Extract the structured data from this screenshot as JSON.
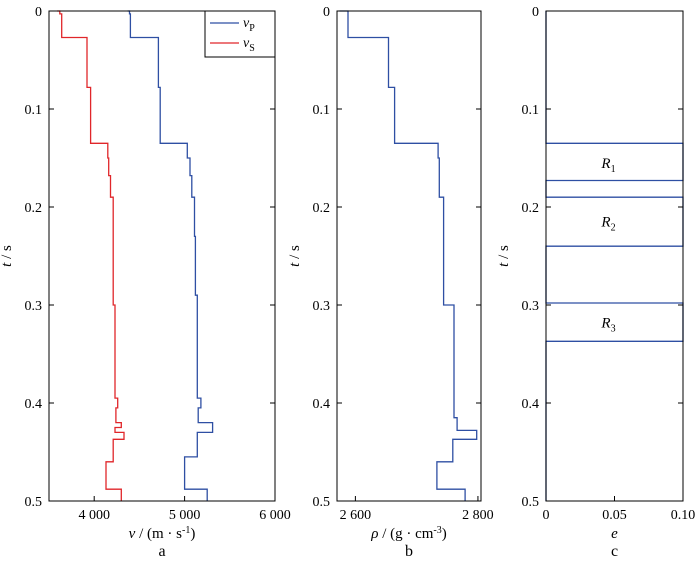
{
  "figure": {
    "colors": {
      "vp": "#2e4fa3",
      "vs": "#e0262a",
      "rho": "#2e4fa3",
      "e": "#2e4fa3",
      "axis": "#000000"
    }
  },
  "chart_data": [
    {
      "panel": "a",
      "type": "line",
      "panel_label": "a",
      "xlabel_sym": "v",
      "xlabel_unit": " / (m · s",
      "xlabel_exp": "-1",
      "xlabel_close": ")",
      "ylabel_sym": "t",
      "ylabel_unit": " / s",
      "xlim": [
        3500,
        6000
      ],
      "ylim": [
        0,
        0.5
      ],
      "xticks": [
        4000,
        5000,
        6000
      ],
      "xtick_labels": [
        "4 000",
        "5 000",
        "6 000"
      ],
      "yticks": [
        0,
        0.1,
        0.2,
        0.3,
        0.4,
        0.5
      ],
      "ytick_labels": [
        "0",
        "0.1",
        "0.2",
        "0.3",
        "0.4",
        "0.5"
      ],
      "legend": [
        {
          "sym": "v",
          "sub": "P",
          "series": "vp"
        },
        {
          "sym": "v",
          "sub": "S",
          "series": "vs"
        }
      ],
      "legend_position": "top-right",
      "series": [
        {
          "name": "vp",
          "points": [
            [
              4370,
              0
            ],
            [
              4390,
              0
            ],
            [
              4390,
              0.003
            ],
            [
              4400,
              0.003
            ],
            [
              4400,
              0.027
            ],
            [
              4710,
              0.027
            ],
            [
              4710,
              0.078
            ],
            [
              4730,
              0.078
            ],
            [
              4730,
              0.135
            ],
            [
              5030,
              0.135
            ],
            [
              5030,
              0.15
            ],
            [
              5060,
              0.15
            ],
            [
              5060,
              0.168
            ],
            [
              5080,
              0.168
            ],
            [
              5080,
              0.19
            ],
            [
              5110,
              0.19
            ],
            [
              5110,
              0.23
            ],
            [
              5120,
              0.23
            ],
            [
              5120,
              0.29
            ],
            [
              5140,
              0.29
            ],
            [
              5140,
              0.395
            ],
            [
              5180,
              0.395
            ],
            [
              5180,
              0.405
            ],
            [
              5150,
              0.405
            ],
            [
              5150,
              0.42
            ],
            [
              5310,
              0.42
            ],
            [
              5310,
              0.43
            ],
            [
              5140,
              0.43
            ],
            [
              5140,
              0.455
            ],
            [
              5000,
              0.455
            ],
            [
              5000,
              0.488
            ],
            [
              5250,
              0.488
            ],
            [
              5250,
              0.5
            ]
          ]
        },
        {
          "name": "vs",
          "points": [
            [
              3590,
              0
            ],
            [
              3620,
              0
            ],
            [
              3620,
              0.003
            ],
            [
              3640,
              0.003
            ],
            [
              3640,
              0.027
            ],
            [
              3920,
              0.027
            ],
            [
              3920,
              0.078
            ],
            [
              3960,
              0.078
            ],
            [
              3960,
              0.135
            ],
            [
              4150,
              0.135
            ],
            [
              4150,
              0.15
            ],
            [
              4160,
              0.15
            ],
            [
              4160,
              0.168
            ],
            [
              4180,
              0.168
            ],
            [
              4180,
              0.19
            ],
            [
              4210,
              0.19
            ],
            [
              4210,
              0.3
            ],
            [
              4230,
              0.3
            ],
            [
              4230,
              0.395
            ],
            [
              4260,
              0.395
            ],
            [
              4260,
              0.405
            ],
            [
              4240,
              0.405
            ],
            [
              4240,
              0.42
            ],
            [
              4300,
              0.42
            ],
            [
              4300,
              0.425
            ],
            [
              4230,
              0.425
            ],
            [
              4230,
              0.43
            ],
            [
              4330,
              0.43
            ],
            [
              4330,
              0.437
            ],
            [
              4210,
              0.437
            ],
            [
              4210,
              0.46
            ],
            [
              4130,
              0.46
            ],
            [
              4130,
              0.488
            ],
            [
              4300,
              0.488
            ],
            [
              4300,
              0.5
            ]
          ]
        }
      ]
    },
    {
      "panel": "b",
      "type": "line",
      "panel_label": "b",
      "xlabel_sym": "ρ",
      "xlabel_unit": " / (g · cm",
      "xlabel_exp": "-3",
      "xlabel_close": ")",
      "ylabel_sym": "t",
      "ylabel_unit": " / s",
      "xlim": [
        2570,
        2805
      ],
      "ylim": [
        0,
        0.5
      ],
      "xticks": [
        2600,
        2800
      ],
      "xtick_labels": [
        "2 600",
        "2 800"
      ],
      "yticks": [
        0,
        0.1,
        0.2,
        0.3,
        0.4,
        0.5
      ],
      "ytick_labels": [
        "0",
        "0.1",
        "0.2",
        "0.3",
        "0.4",
        "0.5"
      ],
      "series": [
        {
          "name": "rho",
          "points": [
            [
              2574,
              0
            ],
            [
              2588,
              0
            ],
            [
              2588,
              0.027
            ],
            [
              2654,
              0.027
            ],
            [
              2654,
              0.078
            ],
            [
              2664,
              0.078
            ],
            [
              2664,
              0.135
            ],
            [
              2735,
              0.135
            ],
            [
              2735,
              0.15
            ],
            [
              2737,
              0.15
            ],
            [
              2737,
              0.19
            ],
            [
              2744,
              0.19
            ],
            [
              2744,
              0.3
            ],
            [
              2761,
              0.3
            ],
            [
              2761,
              0.415
            ],
            [
              2766,
              0.415
            ],
            [
              2766,
              0.428
            ],
            [
              2798,
              0.428
            ],
            [
              2798,
              0.437
            ],
            [
              2759,
              0.437
            ],
            [
              2759,
              0.46
            ],
            [
              2733,
              0.46
            ],
            [
              2733,
              0.488
            ],
            [
              2779,
              0.488
            ],
            [
              2779,
              0.5
            ]
          ]
        }
      ]
    },
    {
      "panel": "c",
      "type": "line",
      "panel_label": "c",
      "xlabel_sym": "e",
      "ylabel_sym": "t",
      "ylabel_unit": " / s",
      "xlim": [
        0,
        0.1
      ],
      "ylim": [
        0,
        0.5
      ],
      "xticks": [
        0,
        0.05,
        0.1
      ],
      "xtick_labels": [
        "0",
        "0.05",
        "0.10"
      ],
      "yticks": [
        0,
        0.1,
        0.2,
        0.3,
        0.4,
        0.5
      ],
      "ytick_labels": [
        "0",
        "0.1",
        "0.2",
        "0.3",
        "0.4",
        "0.5"
      ],
      "series": [
        {
          "name": "e",
          "points": [
            [
              0,
              0
            ],
            [
              0,
              0.135
            ],
            [
              0.1,
              0.135
            ],
            [
              0.1,
              0.173
            ],
            [
              0,
              0.173
            ],
            [
              0,
              0.19
            ],
            [
              0.1,
              0.19
            ],
            [
              0.1,
              0.24
            ],
            [
              0,
              0.24
            ],
            [
              0,
              0.298
            ],
            [
              0.1,
              0.298
            ],
            [
              0.1,
              0.337
            ],
            [
              0,
              0.337
            ],
            [
              0,
              0.5
            ]
          ]
        }
      ],
      "regions": [
        {
          "sym": "R",
          "sub": "1",
          "t": 0.155
        },
        {
          "sym": "R",
          "sub": "2",
          "t": 0.215
        },
        {
          "sym": "R",
          "sub": "3",
          "t": 0.318
        }
      ]
    }
  ]
}
